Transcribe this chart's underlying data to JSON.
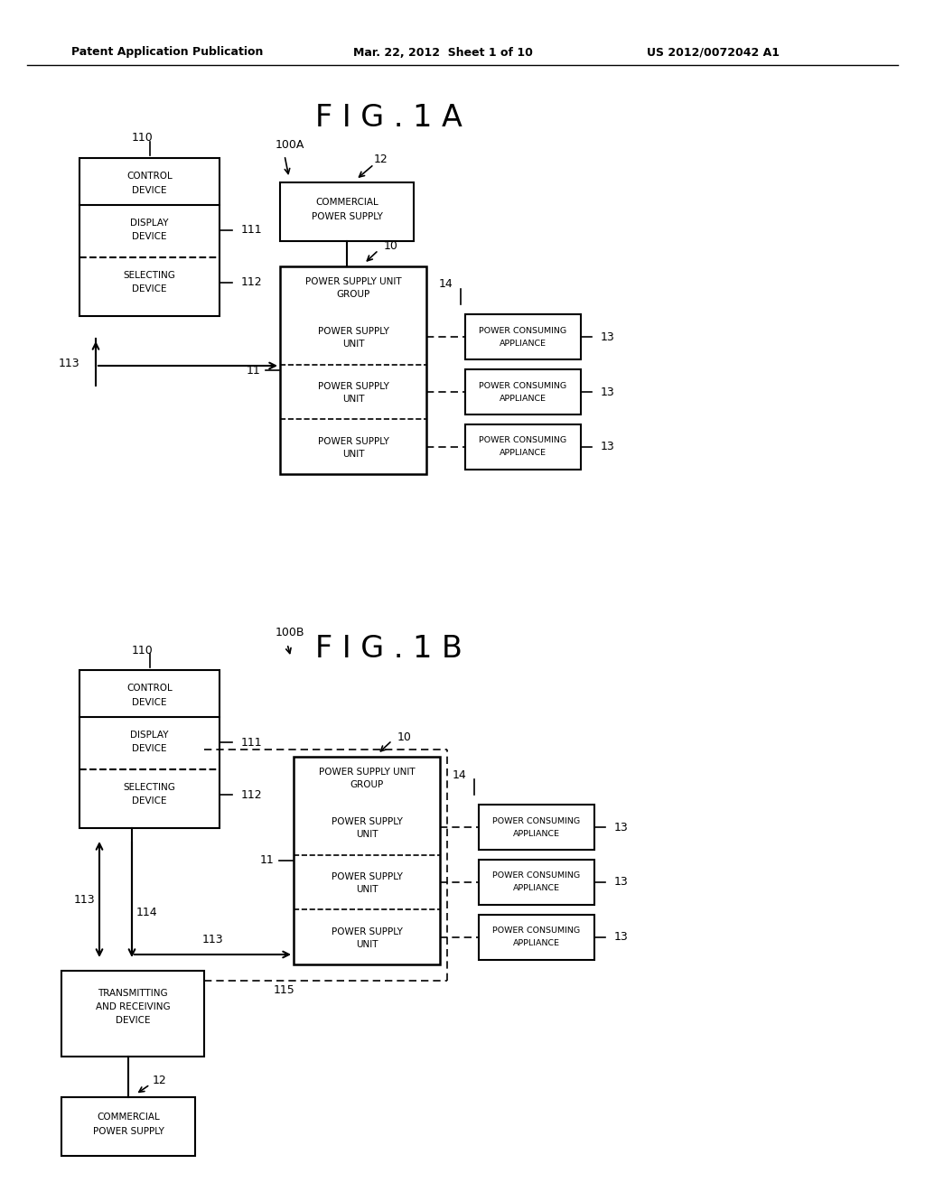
{
  "bg_color": "#ffffff",
  "header_left": "Patent Application Publication",
  "header_mid": "Mar. 22, 2012  Sheet 1 of 10",
  "header_right": "US 2012/0072042 A1",
  "fig1a_title": "F I G . 1 A",
  "fig1b_title": "F I G . 1 B"
}
